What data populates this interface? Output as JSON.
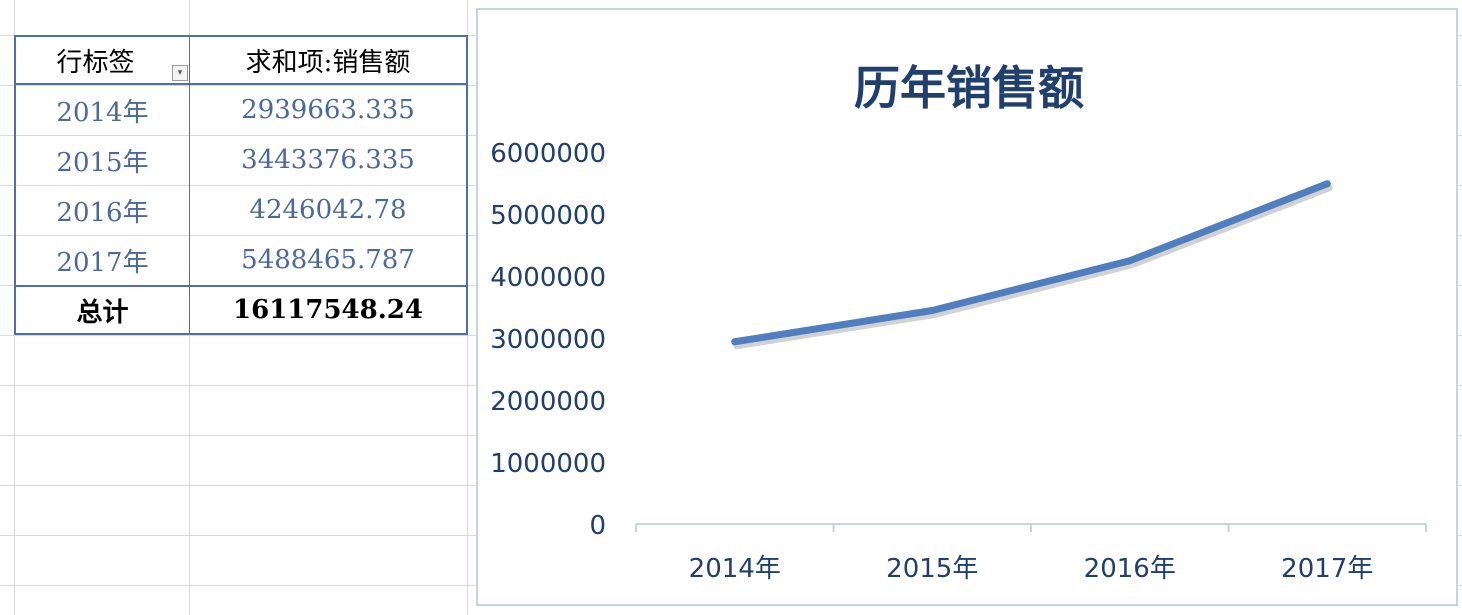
{
  "pivot": {
    "headers": {
      "row_label": "行标签",
      "sum_label": "求和项:销售额"
    },
    "rows": [
      {
        "year": "2014年",
        "value": "2939663.335"
      },
      {
        "year": "2015年",
        "value": "3443376.335"
      },
      {
        "year": "2016年",
        "value": "4246042.78"
      },
      {
        "year": "2017年",
        "value": "5488465.787"
      }
    ],
    "total": {
      "label": "总计",
      "value": "16117548.24"
    },
    "filter_icon": "dropdown-filter-icon"
  },
  "chart_data": {
    "type": "line",
    "title": "历年销售额",
    "categories": [
      "2014年",
      "2015年",
      "2016年",
      "2017年"
    ],
    "series": [
      {
        "values": [
          2939663.335,
          3443376.335,
          4246042.78,
          5488465.787
        ]
      }
    ],
    "ylim": [
      0,
      6000000
    ],
    "yticks": [
      0,
      1000000,
      2000000,
      3000000,
      4000000,
      5000000,
      6000000
    ],
    "ytick_labels": [
      "0",
      "1000000",
      "2000000",
      "3000000",
      "4000000",
      "5000000",
      "6000000"
    ],
    "grid": false,
    "legend": "none",
    "colors": {
      "line": "#4f7fbf",
      "axis_text": "#1f3f6c",
      "title": "#1f3f6c"
    }
  }
}
